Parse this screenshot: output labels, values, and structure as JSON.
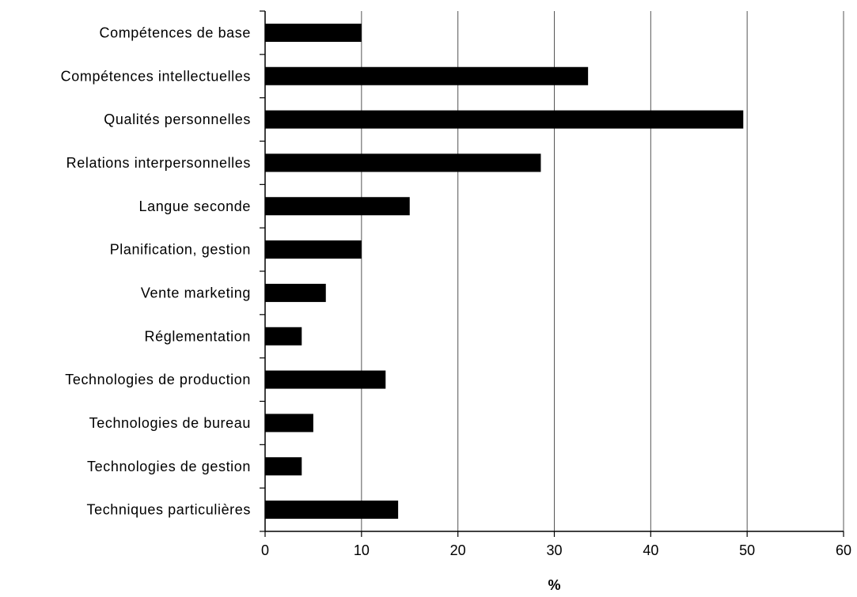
{
  "chart_data": {
    "type": "bar",
    "orientation": "horizontal",
    "title": "",
    "xlabel": "%",
    "ylabel": "",
    "xlim": [
      0,
      60
    ],
    "x_ticks": [
      0,
      10,
      20,
      30,
      40,
      50,
      60
    ],
    "x_tick_labels": [
      "0",
      "10",
      "20",
      "30",
      "40",
      "50",
      "60"
    ],
    "grid": "vertical",
    "legend": "none",
    "bar_color": "#000000",
    "grid_color": "#555555",
    "axis_color": "#000000",
    "categories": [
      "Compétences de base",
      "Compétences intellectuelles",
      "Qualités personnelles",
      "Relations interpersonnelles",
      "Langue seconde",
      "Planification, gestion",
      "Vente marketing",
      "Réglementation",
      "Technologies de production",
      "Technologies de bureau",
      "Technologies de gestion",
      "Techniques particulières"
    ],
    "values": [
      10,
      33.5,
      49.6,
      28.6,
      15,
      10,
      6.3,
      3.8,
      12.5,
      5,
      3.8,
      13.8
    ]
  }
}
